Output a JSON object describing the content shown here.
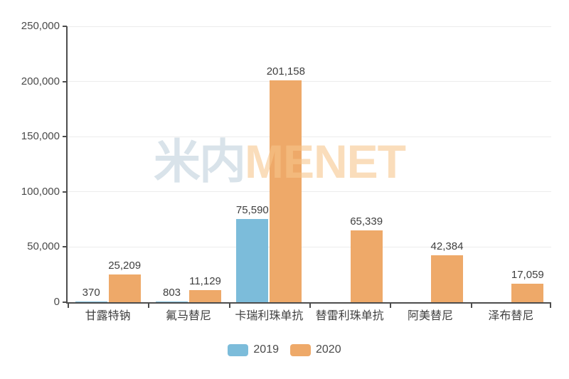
{
  "chart_data": {
    "type": "bar",
    "title": "",
    "xlabel": "",
    "ylabel": "",
    "categories": [
      "甘露特钠",
      "氟马替尼",
      "卡瑞利珠单抗",
      "替雷利珠单抗",
      "阿美替尼",
      "泽布替尼"
    ],
    "series": [
      {
        "name": "2019",
        "color": "#7cbcda",
        "values": [
          370,
          803,
          75590,
          null,
          null,
          null
        ]
      },
      {
        "name": "2020",
        "color": "#eea969",
        "values": [
          25209,
          11129,
          201158,
          65339,
          42384,
          17059
        ]
      }
    ],
    "ylim": [
      0,
      250000
    ],
    "yticks": [
      0,
      50000,
      100000,
      150000,
      200000,
      250000
    ],
    "ytick_labels": [
      "0",
      "50,000",
      "100,000",
      "150,000",
      "200,000",
      "250,000"
    ],
    "data_labels": [
      "370",
      "803",
      "75,590",
      "25,209",
      "11,129",
      "201,158",
      "65,339",
      "42,384",
      "17,059"
    ],
    "grid": true,
    "legend_position": "bottom"
  },
  "watermark": {
    "cn": "米内",
    "en": "MENET"
  },
  "colors": {
    "axis": "#4d4d4d",
    "gridline": "#ececec",
    "text": "#3f3f3f",
    "series_2019": "#7cbcda",
    "series_2020": "#eea969",
    "watermark_cn": "#e2e9ee",
    "watermark_en": "#fbe9d7"
  }
}
